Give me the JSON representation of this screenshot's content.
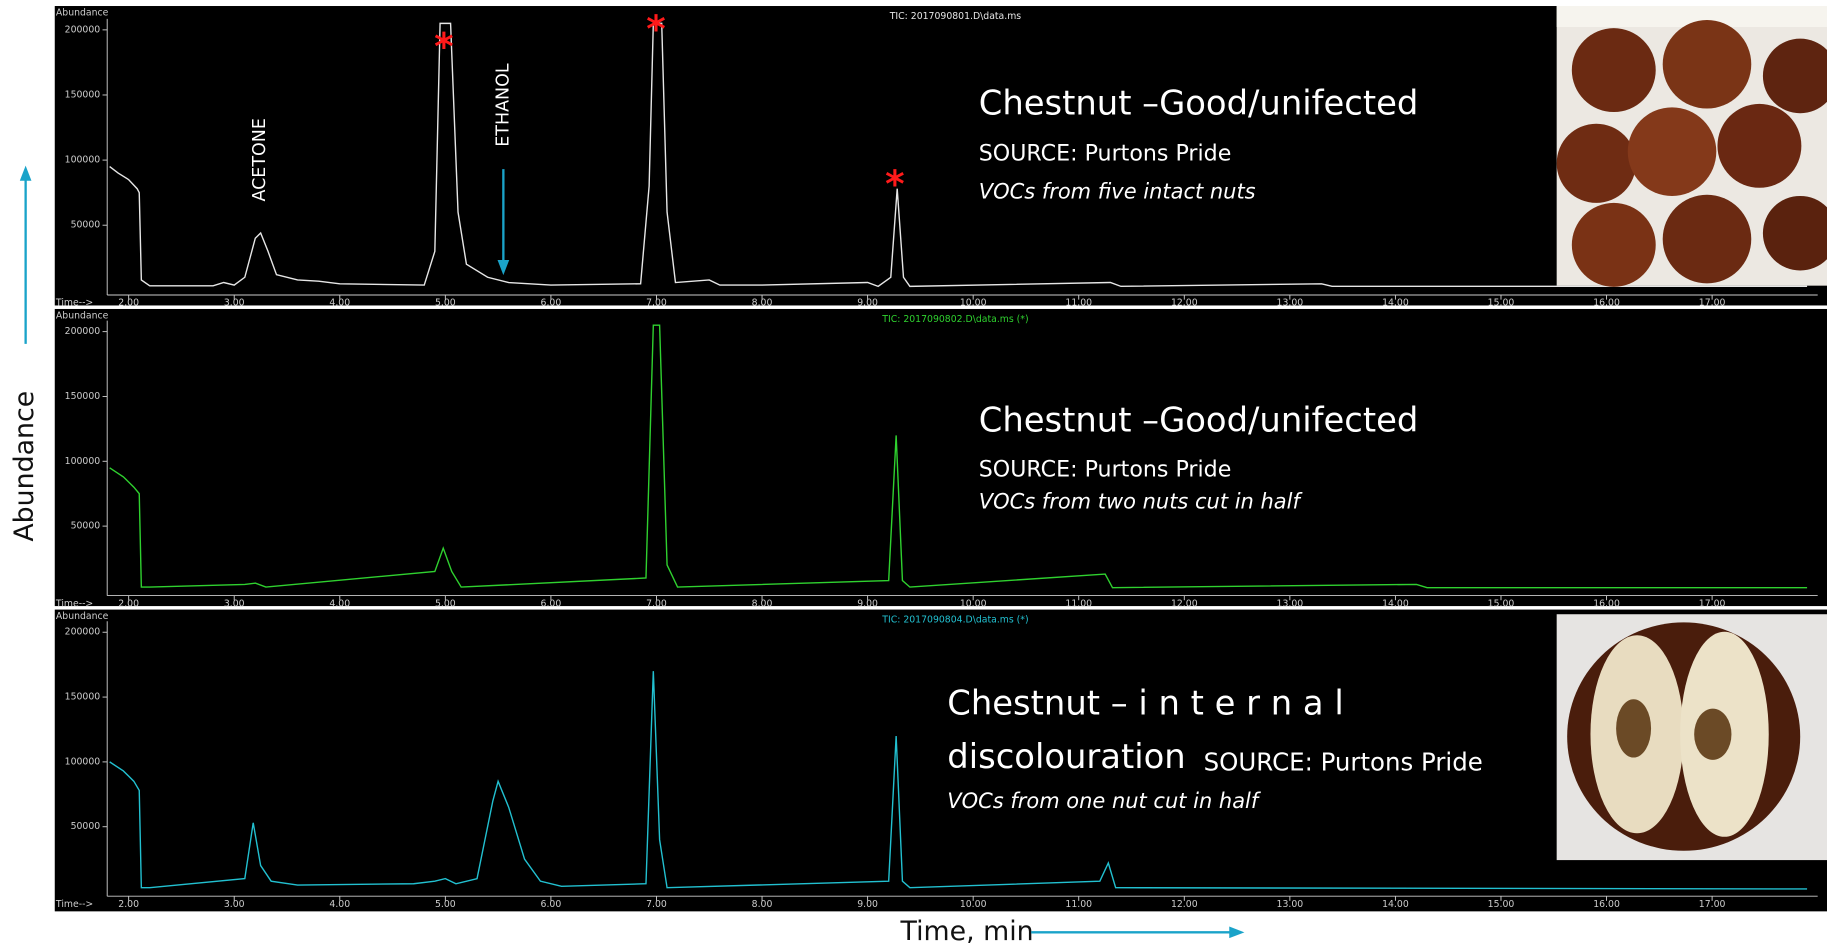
{
  "page": {
    "y_label": "Abundance",
    "x_label": "Time, min"
  },
  "chart_data": [
    {
      "type": "line",
      "header": "TIC: 2017090801.D\\data.ms",
      "y_tag": "Abundance",
      "x_tag": "Time-->",
      "title": [
        "Chestnut –Good/unifected"
      ],
      "subtitle": "SOURCE: Purtons Pride",
      "note": "VOCs from five intact nuts",
      "annotations": [
        "ACETONE",
        "ETHANOL",
        "*",
        "*",
        "*"
      ],
      "color": "#e6e6e6",
      "xlim": [
        1.3,
        18.0
      ],
      "ylim": [
        0,
        204000
      ],
      "xticks": [
        {
          "value": 2,
          "label": "2.00"
        },
        {
          "value": 3,
          "label": "3.00"
        },
        {
          "value": 4,
          "label": "4.00"
        },
        {
          "value": 5,
          "label": "5.00"
        },
        {
          "value": 6,
          "label": "6.00"
        },
        {
          "value": 7,
          "label": "7.00"
        },
        {
          "value": 8,
          "label": "8.00"
        },
        {
          "value": 9,
          "label": "9.00"
        },
        {
          "value": 10,
          "label": "10.00"
        },
        {
          "value": 11,
          "label": "11.00"
        },
        {
          "value": 12,
          "label": "12.00"
        },
        {
          "value": 13,
          "label": "13.00"
        },
        {
          "value": 14,
          "label": "14.00"
        },
        {
          "value": 15,
          "label": "15.00"
        },
        {
          "value": 16,
          "label": "16.00"
        },
        {
          "value": 17,
          "label": "17.00"
        }
      ],
      "yticks": [
        50000,
        100000,
        150000,
        200000
      ],
      "x": [
        1.82,
        1.9,
        2.0,
        2.08,
        2.1,
        2.12,
        2.2,
        2.8,
        2.9,
        3.0,
        3.1,
        3.2,
        3.25,
        3.32,
        3.4,
        3.6,
        3.8,
        4.0,
        4.8,
        4.9,
        4.95,
        5.05,
        5.12,
        5.2,
        5.4,
        5.6,
        6.0,
        6.85,
        6.93,
        6.97,
        7.05,
        7.1,
        7.18,
        7.5,
        7.6,
        8.0,
        9.0,
        9.1,
        9.22,
        9.28,
        9.34,
        9.4,
        11.3,
        11.4,
        13.3,
        13.4,
        17.9
      ],
      "values": [
        95000,
        90000,
        85000,
        78000,
        75000,
        8000,
        3500,
        3500,
        6000,
        4000,
        10000,
        40000,
        44000,
        30000,
        12000,
        8000,
        7000,
        5000,
        4000,
        30000,
        205000,
        205000,
        60000,
        20000,
        10000,
        6000,
        4000,
        5000,
        80000,
        205000,
        205000,
        60000,
        6000,
        8000,
        4000,
        4000,
        6000,
        3000,
        10000,
        78000,
        10000,
        3000,
        6000,
        3000,
        5000,
        3000,
        3000
      ]
    },
    {
      "type": "line",
      "header": "TIC: 2017090802.D\\data.ms (*)",
      "y_tag": "Abundance",
      "x_tag": "Time-->",
      "title": [
        "Chestnut –Good/unifected"
      ],
      "subtitle": "SOURCE: Purtons Pride",
      "note": "VOCs from two nuts cut in half",
      "color": "#2fd12f",
      "xlim": [
        1.3,
        18.0
      ],
      "ylim": [
        0,
        204000
      ],
      "xticks": [
        {
          "value": 2,
          "label": "2.00"
        },
        {
          "value": 3,
          "label": "3.00"
        },
        {
          "value": 4,
          "label": "4.00"
        },
        {
          "value": 5,
          "label": "5.00"
        },
        {
          "value": 6,
          "label": "6.00"
        },
        {
          "value": 7,
          "label": "7.00"
        },
        {
          "value": 8,
          "label": "8.00"
        },
        {
          "value": 9,
          "label": "9.00"
        },
        {
          "value": 10,
          "label": "10.00"
        },
        {
          "value": 11,
          "label": "11.00"
        },
        {
          "value": 12,
          "label": "12.00"
        },
        {
          "value": 13,
          "label": "13.00"
        },
        {
          "value": 14,
          "label": "14.00"
        },
        {
          "value": 15,
          "label": "15.00"
        },
        {
          "value": 16,
          "label": "16.00"
        },
        {
          "value": 17,
          "label": "17.00"
        }
      ],
      "yticks": [
        50000,
        100000,
        150000,
        200000
      ],
      "x": [
        1.82,
        1.95,
        2.05,
        2.1,
        2.12,
        2.2,
        3.1,
        3.2,
        3.3,
        4.9,
        4.98,
        5.06,
        5.15,
        6.9,
        6.97,
        7.03,
        7.1,
        7.2,
        9.2,
        9.27,
        9.33,
        9.4,
        11.25,
        11.32,
        14.2,
        14.3,
        17.9
      ],
      "values": [
        95000,
        88000,
        80000,
        75000,
        3000,
        3000,
        5000,
        6000,
        3000,
        15000,
        33000,
        15000,
        3000,
        10000,
        205000,
        205000,
        20000,
        3000,
        8000,
        120000,
        8000,
        3000,
        13000,
        2500,
        5000,
        2500,
        2500
      ]
    },
    {
      "type": "line",
      "header": "TIC: 2017090804.D\\data.ms (*)",
      "y_tag": "Abundance",
      "x_tag": "Time-->",
      "title": [
        "Chestnut – i n t e r n a l",
        "discolouration"
      ],
      "subtitle": "SOURCE: Purtons Pride",
      "note": "VOCs from one nut cut in half",
      "color": "#22c0d0",
      "xlim": [
        1.3,
        18.0
      ],
      "ylim": [
        0,
        204000
      ],
      "xticks": [
        {
          "value": 2,
          "label": "2.00"
        },
        {
          "value": 3,
          "label": "3.00"
        },
        {
          "value": 4,
          "label": "4.00"
        },
        {
          "value": 5,
          "label": "5.00"
        },
        {
          "value": 6,
          "label": "6.00"
        },
        {
          "value": 7,
          "label": "7.00"
        },
        {
          "value": 8,
          "label": "8.00"
        },
        {
          "value": 9,
          "label": "9.00"
        },
        {
          "value": 10,
          "label": "10.00"
        },
        {
          "value": 11,
          "label": "11.00"
        },
        {
          "value": 12,
          "label": "12.00"
        },
        {
          "value": 13,
          "label": "13.00"
        },
        {
          "value": 14,
          "label": "14.00"
        },
        {
          "value": 15,
          "label": "15.00"
        },
        {
          "value": 16,
          "label": "16.00"
        },
        {
          "value": 17,
          "label": "17.00"
        }
      ],
      "yticks": [
        50000,
        100000,
        150000,
        200000
      ],
      "x": [
        1.82,
        1.95,
        2.05,
        2.1,
        2.12,
        2.2,
        3.1,
        3.18,
        3.25,
        3.35,
        3.6,
        4.7,
        4.9,
        5.0,
        5.1,
        5.3,
        5.45,
        5.5,
        5.6,
        5.75,
        5.9,
        6.1,
        6.9,
        6.97,
        7.03,
        7.1,
        9.2,
        9.27,
        9.33,
        9.4,
        11.2,
        11.28,
        11.35,
        17.9
      ],
      "values": [
        100000,
        93000,
        85000,
        78000,
        3000,
        3000,
        10000,
        53000,
        20000,
        8000,
        5000,
        6000,
        8000,
        10000,
        6000,
        10000,
        70000,
        85000,
        65000,
        25000,
        8000,
        4000,
        6000,
        170000,
        40000,
        3000,
        8000,
        120000,
        8000,
        3000,
        8000,
        22000,
        3000,
        2000
      ]
    }
  ]
}
